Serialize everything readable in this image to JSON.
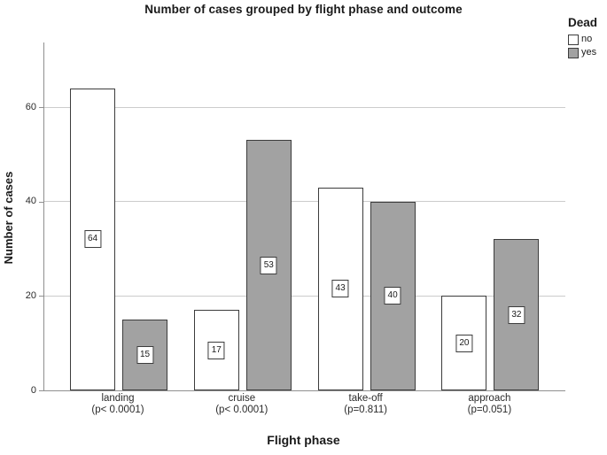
{
  "chart_data": {
    "type": "bar",
    "title": "Number of cases grouped by flight phase and outcome",
    "xlabel": "Flight phase",
    "ylabel": "Number of cases",
    "categories": [
      "landing",
      "cruise",
      "take-off",
      "approach"
    ],
    "category_sublabels": [
      "(p< 0.0001)",
      "(p< 0.0001)",
      "(p=0.811)",
      "(p=0.051)"
    ],
    "series": [
      {
        "name": "no",
        "values": [
          64,
          17,
          43,
          20
        ],
        "fill": "#ffffff"
      },
      {
        "name": "yes",
        "values": [
          15,
          53,
          40,
          32
        ],
        "fill": "#a2a2a2"
      }
    ],
    "value_labels_shown": true,
    "yticks": [
      0,
      20,
      40,
      60
    ],
    "ylim": [
      0,
      73.7
    ],
    "grid": "horizontal",
    "legend_position": "outside-top-right"
  },
  "legend": {
    "title": "Dead",
    "items": [
      {
        "label": "no",
        "color": "#ffffff"
      },
      {
        "label": "yes",
        "color": "#a2a2a2"
      }
    ]
  },
  "colors": {
    "bar_border": "#3c3c3c",
    "gridline": "#cccccc",
    "axis_line": "#8f8f8f",
    "text": "#1a1a1a",
    "background": "#ffffff"
  }
}
